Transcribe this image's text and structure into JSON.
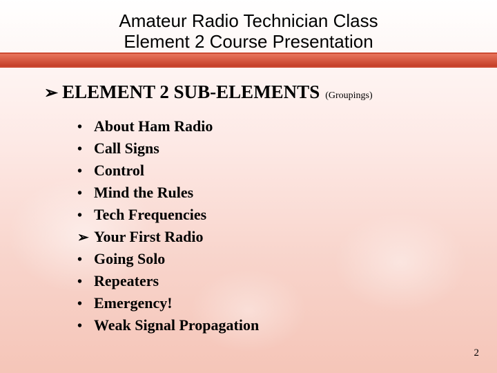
{
  "colors": {
    "bar_gradient_top": "#e8745c",
    "bar_gradient_bottom": "#c43e28",
    "bar_border": "#cc4a33",
    "text": "#000000",
    "bg_top": "#ffffff",
    "bg_bottom": "#f5c5b8"
  },
  "title": {
    "line1": "Amateur Radio Technician Class",
    "line2": "Element 2 Course Presentation",
    "font_family": "Arial",
    "font_size": 26
  },
  "heading": {
    "arrow": "➢",
    "text": "ELEMENT 2 SUB-ELEMENTS",
    "suffix": "(Groupings)",
    "font_size": 27,
    "suffix_font_size": 14
  },
  "list": {
    "font_size": 22,
    "font_weight": "bold",
    "bullet_dot": "•",
    "bullet_arrow": "➢",
    "items": [
      {
        "bullet_type": "dot",
        "text": "About Ham Radio"
      },
      {
        "bullet_type": "dot",
        "text": "Call Signs"
      },
      {
        "bullet_type": "dot",
        "text": "Control"
      },
      {
        "bullet_type": "dot",
        "text": "Mind the Rules"
      },
      {
        "bullet_type": "dot",
        "text": "Tech Frequencies"
      },
      {
        "bullet_type": "arrow",
        "text": "Your First Radio"
      },
      {
        "bullet_type": "dot",
        "text": "Going Solo"
      },
      {
        "bullet_type": "dot",
        "text": "Repeaters"
      },
      {
        "bullet_type": "dot",
        "text": "Emergency!"
      },
      {
        "bullet_type": "dot",
        "text": "Weak Signal Propagation"
      }
    ]
  },
  "footer": {
    "page_number": "2",
    "font_size": 15
  }
}
